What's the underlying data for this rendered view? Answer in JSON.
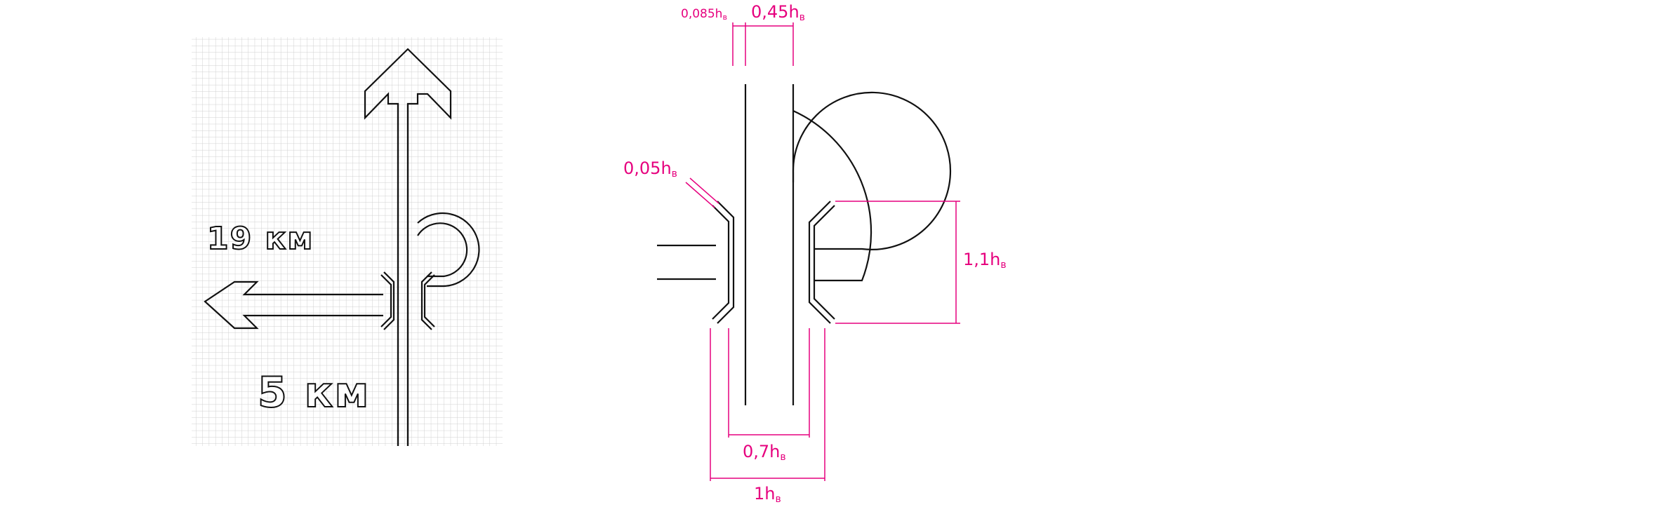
{
  "sign": {
    "distance_left": "19 км",
    "distance_straight": "5 км"
  },
  "dimensions": {
    "gap_top_small": "0,085h",
    "gap_top_small_sub": "в",
    "stem_width": "0,45h",
    "stem_width_sub": "в",
    "bracket_gap": "0,05h",
    "bracket_gap_sub": "в",
    "loop_height": "1,1h",
    "loop_height_sub": "в",
    "inner_width": "0,7h",
    "inner_width_sub": "в",
    "outer_width": "1h",
    "outer_width_sub": "в"
  },
  "colors": {
    "ink": "#111111",
    "dimension": "#e6007e",
    "grid": "#cfcfcf"
  }
}
